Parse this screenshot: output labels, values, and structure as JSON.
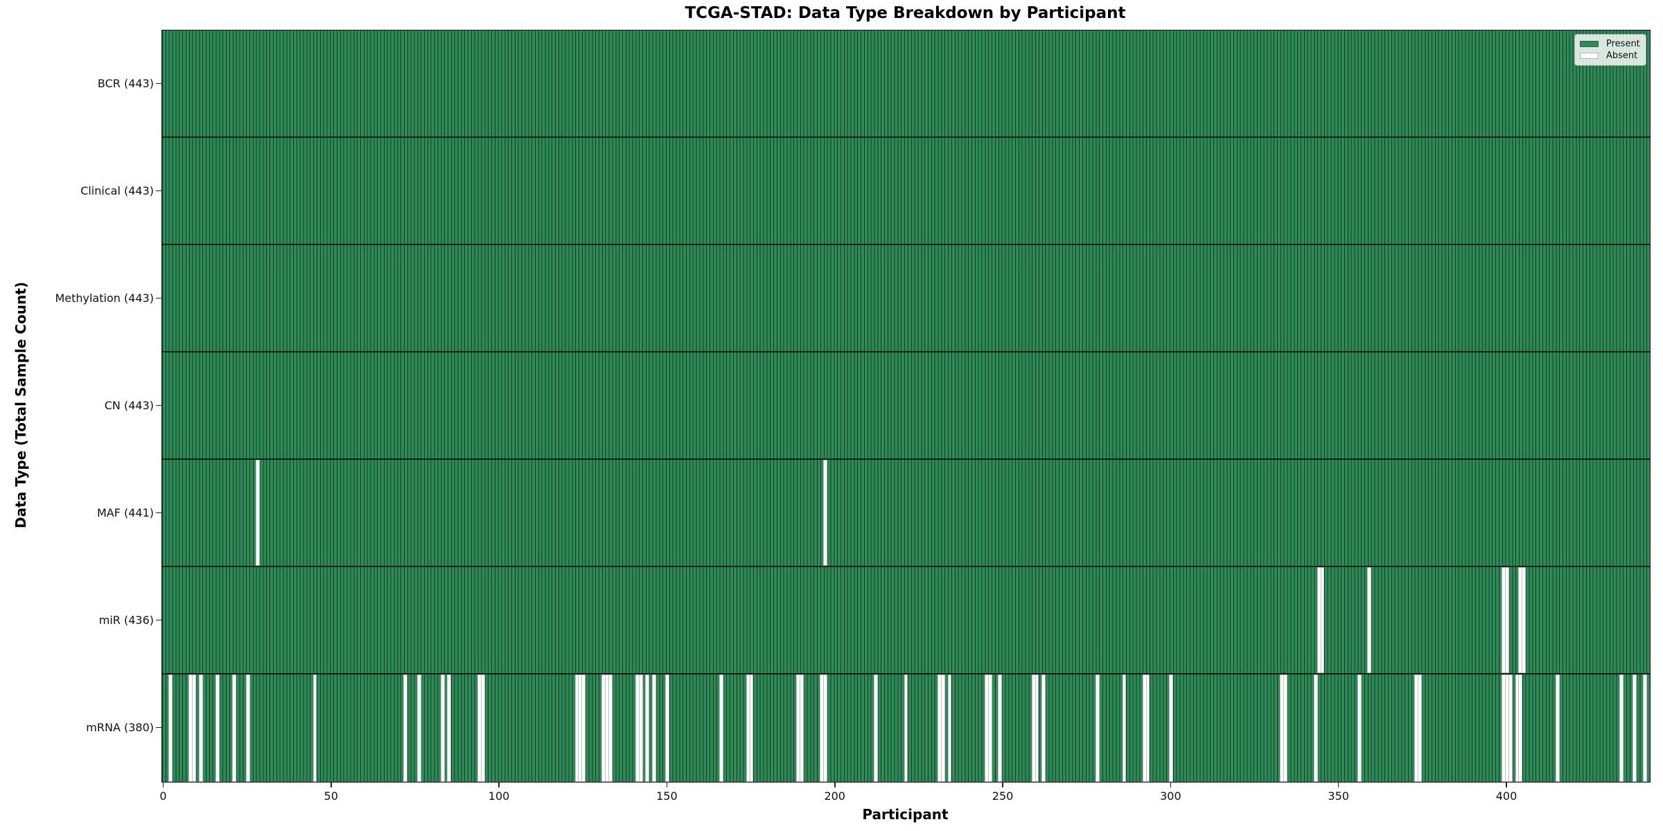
{
  "title": "TCGA-STAD: Data Type Breakdown by Participant",
  "x_axis": {
    "label": "Participant",
    "ticks": [
      0,
      50,
      100,
      150,
      200,
      250,
      300,
      350,
      400
    ]
  },
  "y_axis": {
    "label": "Data Type (Total Sample Count)"
  },
  "legend": {
    "items": [
      {
        "label": "Present",
        "color": "#2e8b57"
      },
      {
        "label": "Absent",
        "color": "#ffffff"
      }
    ]
  },
  "chart_data": {
    "type": "heatmap",
    "n_participants": 443,
    "x_range": [
      0,
      442
    ],
    "colors": {
      "present": "#2e8b57",
      "absent": "#ffffff",
      "bar_edge": "rgba(14,34,21,0.75)"
    },
    "legend_position": "upper right",
    "rows": [
      {
        "label": "BCR (443)",
        "data_type": "BCR",
        "present_count": 443,
        "absent_participants": []
      },
      {
        "label": "Clinical (443)",
        "data_type": "Clinical",
        "present_count": 443,
        "absent_participants": []
      },
      {
        "label": "Methylation (443)",
        "data_type": "Methylation",
        "present_count": 443,
        "absent_participants": []
      },
      {
        "label": "CN (443)",
        "data_type": "CN",
        "present_count": 443,
        "absent_participants": []
      },
      {
        "label": "MAF (441)",
        "data_type": "MAF",
        "present_count": 441,
        "absent_participants": [
          28,
          197
        ]
      },
      {
        "label": "miR (436)",
        "data_type": "miR",
        "present_count": 436,
        "absent_participants": [
          344,
          345,
          359,
          399,
          400,
          404,
          405
        ]
      },
      {
        "label": "mRNA (380)",
        "data_type": "mRNA",
        "present_count": 380,
        "absent_participants": [
          2,
          8,
          9,
          11,
          16,
          21,
          25,
          45,
          72,
          76,
          83,
          85,
          94,
          95,
          123,
          124,
          125,
          131,
          132,
          133,
          141,
          142,
          144,
          146,
          150,
          166,
          174,
          175,
          189,
          190,
          196,
          197,
          212,
          221,
          231,
          232,
          234,
          245,
          246,
          249,
          259,
          260,
          262,
          278,
          286,
          292,
          293,
          300,
          333,
          334,
          343,
          356,
          373,
          374,
          399,
          400,
          401,
          403,
          404,
          415,
          434,
          438,
          441
        ]
      }
    ]
  }
}
